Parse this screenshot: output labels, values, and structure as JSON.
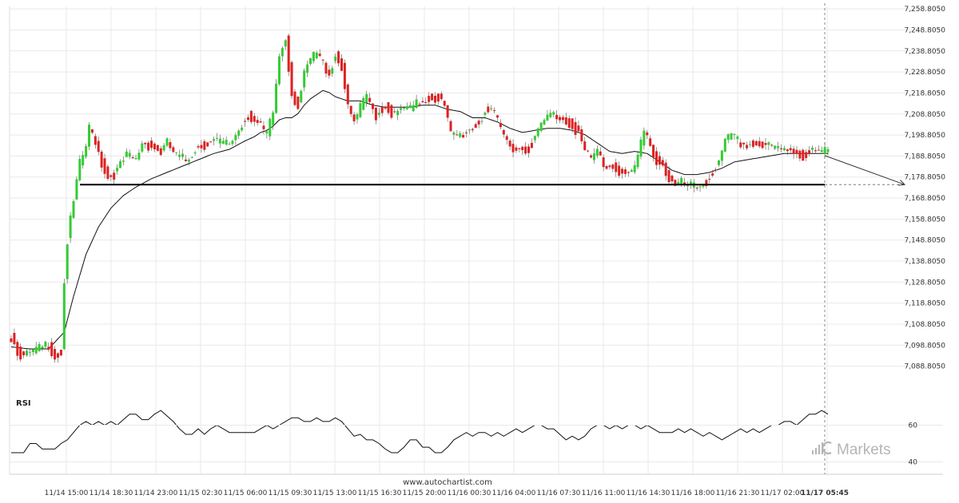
{
  "chart_data": {
    "type": "candlestick",
    "ylim": [
      7086,
      7260
    ],
    "yticks": [
      "7,258.8050",
      "7,248.8050",
      "7,238.8050",
      "7,228.8050",
      "7,218.8050",
      "7,208.8050",
      "7,198.8050",
      "7,188.8050",
      "7,178.8050",
      "7,168.8050",
      "7,158.8050",
      "7,148.8050",
      "7,138.8050",
      "7,128.8050",
      "7,118.8050",
      "7,108.8050",
      "7,098.8050",
      "7,088.8050"
    ],
    "ytick_values": [
      7258.805,
      7248.805,
      7238.805,
      7228.805,
      7218.805,
      7208.805,
      7198.805,
      7188.805,
      7178.805,
      7168.805,
      7158.805,
      7148.805,
      7138.805,
      7128.805,
      7118.805,
      7108.805,
      7098.805,
      7088.805
    ],
    "xtick_labels": [
      "11/14 15:00",
      "11/14 18:30",
      "11/14 23:00",
      "11/15 02:30",
      "11/15 06:00",
      "11/15 09:30",
      "11/15 13:00",
      "11/15 16:30",
      "11/15 20:00",
      "11/16 00:30",
      "11/16 04:00",
      "11/16 07:30",
      "11/16 11:00",
      "11/16 14:30",
      "11/16 18:00",
      "11/16 21:30",
      "11/17 02:00",
      "11/17 05:45"
    ],
    "close_anchors": [
      [
        0,
        7104
      ],
      [
        2,
        7098
      ],
      [
        4,
        7094
      ],
      [
        6,
        7096
      ],
      [
        9,
        7098
      ],
      [
        12,
        7101
      ],
      [
        14,
        7095
      ],
      [
        16,
        7097
      ],
      [
        17,
        7130
      ],
      [
        18,
        7150
      ],
      [
        20,
        7168
      ],
      [
        22,
        7186
      ],
      [
        24,
        7195
      ],
      [
        25,
        7203
      ],
      [
        27,
        7198
      ],
      [
        29,
        7187
      ],
      [
        31,
        7180
      ],
      [
        34,
        7183
      ],
      [
        37,
        7190
      ],
      [
        40,
        7188
      ],
      [
        42,
        7197
      ],
      [
        45,
        7195
      ],
      [
        48,
        7192
      ],
      [
        50,
        7196
      ],
      [
        53,
        7190
      ],
      [
        56,
        7188
      ],
      [
        59,
        7194
      ],
      [
        62,
        7196
      ],
      [
        65,
        7197
      ],
      [
        68,
        7196
      ],
      [
        70,
        7196
      ],
      [
        73,
        7203
      ],
      [
        76,
        7210
      ],
      [
        79,
        7205
      ],
      [
        82,
        7200
      ],
      [
        84,
        7211
      ],
      [
        86,
        7238
      ],
      [
        88,
        7247
      ],
      [
        89,
        7233
      ],
      [
        90,
        7220
      ],
      [
        92,
        7214
      ],
      [
        94,
        7228
      ],
      [
        96,
        7236
      ],
      [
        98,
        7239
      ],
      [
        100,
        7234
      ],
      [
        102,
        7230
      ],
      [
        104,
        7238
      ],
      [
        106,
        7233
      ],
      [
        108,
        7212
      ],
      [
        110,
        7206
      ],
      [
        112,
        7213
      ],
      [
        114,
        7218
      ],
      [
        117,
        7210
      ],
      [
        120,
        7214
      ],
      [
        123,
        7209
      ],
      [
        126,
        7213
      ],
      [
        128,
        7212
      ],
      [
        131,
        7216
      ],
      [
        134,
        7218
      ],
      [
        137,
        7218
      ],
      [
        139,
        7213
      ],
      [
        141,
        7200
      ],
      [
        144,
        7200
      ],
      [
        147,
        7203
      ],
      [
        150,
        7206
      ],
      [
        152,
        7212
      ],
      [
        155,
        7209
      ],
      [
        157,
        7203
      ],
      [
        159,
        7197
      ],
      [
        162,
        7194
      ],
      [
        165,
        7193
      ],
      [
        168,
        7198
      ],
      [
        170,
        7205
      ],
      [
        173,
        7210
      ],
      [
        176,
        7209
      ],
      [
        178,
        7207
      ],
      [
        180,
        7205
      ],
      [
        182,
        7201
      ],
      [
        184,
        7192
      ],
      [
        186,
        7188
      ],
      [
        188,
        7193
      ],
      [
        190,
        7186
      ],
      [
        193,
        7185
      ],
      [
        196,
        7182
      ],
      [
        199,
        7181
      ],
      [
        201,
        7190
      ],
      [
        203,
        7201
      ],
      [
        205,
        7196
      ],
      [
        207,
        7188
      ],
      [
        209,
        7186
      ],
      [
        211,
        7179
      ],
      [
        213,
        7175
      ],
      [
        215,
        7177
      ],
      [
        217,
        7176
      ],
      [
        219,
        7175
      ],
      [
        221,
        7176
      ],
      [
        223,
        7178
      ],
      [
        225,
        7183
      ],
      [
        227,
        7186
      ],
      [
        229,
        7196
      ],
      [
        231,
        7200
      ],
      [
        233,
        7197
      ],
      [
        235,
        7196
      ],
      [
        238,
        7196
      ],
      [
        241,
        7195
      ],
      [
        244,
        7194
      ],
      [
        247,
        7193
      ],
      [
        250,
        7194
      ],
      [
        252,
        7192
      ],
      [
        254,
        7190
      ],
      [
        256,
        7192
      ]
    ],
    "ma_anchors": [
      [
        0,
        7098
      ],
      [
        6,
        7097
      ],
      [
        12,
        7097
      ],
      [
        17,
        7105
      ],
      [
        20,
        7122
      ],
      [
        24,
        7142
      ],
      [
        28,
        7155
      ],
      [
        32,
        7164
      ],
      [
        36,
        7170
      ],
      [
        40,
        7174
      ],
      [
        45,
        7178
      ],
      [
        50,
        7181
      ],
      [
        55,
        7184
      ],
      [
        60,
        7187
      ],
      [
        65,
        7190
      ],
      [
        70,
        7192
      ],
      [
        75,
        7196
      ],
      [
        78,
        7198
      ],
      [
        80,
        7200
      ],
      [
        82,
        7201
      ],
      [
        84,
        7203
      ],
      [
        86,
        7206
      ],
      [
        88,
        7207
      ],
      [
        90,
        7207
      ],
      [
        92,
        7209
      ],
      [
        94,
        7213
      ],
      [
        96,
        7216
      ],
      [
        98,
        7218
      ],
      [
        100,
        7220
      ],
      [
        102,
        7219
      ],
      [
        104,
        7217
      ],
      [
        108,
        7215
      ],
      [
        112,
        7215
      ],
      [
        116,
        7213
      ],
      [
        120,
        7212
      ],
      [
        124,
        7212
      ],
      [
        128,
        7212
      ],
      [
        132,
        7213
      ],
      [
        136,
        7213
      ],
      [
        140,
        7211
      ],
      [
        144,
        7210
      ],
      [
        148,
        7207
      ],
      [
        152,
        7207
      ],
      [
        156,
        7205
      ],
      [
        160,
        7202
      ],
      [
        164,
        7200
      ],
      [
        168,
        7201
      ],
      [
        172,
        7202
      ],
      [
        176,
        7202
      ],
      [
        180,
        7201
      ],
      [
        184,
        7199
      ],
      [
        188,
        7195
      ],
      [
        192,
        7191
      ],
      [
        196,
        7190
      ],
      [
        200,
        7191
      ],
      [
        204,
        7190
      ],
      [
        208,
        7186
      ],
      [
        212,
        7182
      ],
      [
        216,
        7180
      ],
      [
        220,
        7180
      ],
      [
        224,
        7181
      ],
      [
        228,
        7183
      ],
      [
        232,
        7186
      ],
      [
        236,
        7187
      ],
      [
        240,
        7188
      ],
      [
        244,
        7189
      ],
      [
        248,
        7190
      ],
      [
        252,
        7190
      ],
      [
        256,
        7190
      ]
    ],
    "support_level": 7175.2,
    "support_x_end": 1132,
    "forecast_from": [
      1032,
      7189
    ],
    "forecast_to": [
      1132,
      7175.2
    ],
    "rsi": {
      "title": "RSI",
      "ylim": [
        35,
        75
      ],
      "yticks": [
        "60",
        "40"
      ],
      "ytick_values": [
        60,
        40
      ],
      "anchors": [
        [
          0,
          45
        ],
        [
          4,
          45
        ],
        [
          6,
          50
        ],
        [
          8,
          50
        ],
        [
          10,
          47
        ],
        [
          14,
          47
        ],
        [
          16,
          50
        ],
        [
          18,
          52
        ],
        [
          20,
          56
        ],
        [
          22,
          60
        ],
        [
          24,
          62
        ],
        [
          26,
          60
        ],
        [
          28,
          62
        ],
        [
          30,
          60
        ],
        [
          32,
          62
        ],
        [
          34,
          60
        ],
        [
          36,
          63
        ],
        [
          38,
          66
        ],
        [
          40,
          66
        ],
        [
          42,
          63
        ],
        [
          44,
          63
        ],
        [
          46,
          66
        ],
        [
          48,
          68
        ],
        [
          50,
          65
        ],
        [
          52,
          62
        ],
        [
          54,
          58
        ],
        [
          56,
          55
        ],
        [
          58,
          55
        ],
        [
          60,
          58
        ],
        [
          62,
          55
        ],
        [
          64,
          58
        ],
        [
          66,
          60
        ],
        [
          68,
          58
        ],
        [
          70,
          56
        ],
        [
          72,
          56
        ],
        [
          74,
          56
        ],
        [
          76,
          56
        ],
        [
          78,
          56
        ],
        [
          80,
          58
        ],
        [
          82,
          60
        ],
        [
          84,
          58
        ],
        [
          86,
          60
        ],
        [
          88,
          62
        ],
        [
          90,
          64
        ],
        [
          92,
          64
        ],
        [
          94,
          62
        ],
        [
          96,
          62
        ],
        [
          98,
          64
        ],
        [
          100,
          62
        ],
        [
          102,
          62
        ],
        [
          104,
          64
        ],
        [
          106,
          62
        ],
        [
          108,
          58
        ],
        [
          110,
          54
        ],
        [
          112,
          55
        ],
        [
          114,
          52
        ],
        [
          116,
          52
        ],
        [
          118,
          50
        ],
        [
          120,
          47
        ],
        [
          122,
          45
        ],
        [
          124,
          45
        ],
        [
          126,
          48
        ],
        [
          128,
          52
        ],
        [
          130,
          52
        ],
        [
          132,
          48
        ],
        [
          134,
          48
        ],
        [
          136,
          45
        ],
        [
          138,
          45
        ],
        [
          140,
          48
        ],
        [
          142,
          52
        ],
        [
          144,
          54
        ],
        [
          146,
          56
        ],
        [
          148,
          54
        ],
        [
          150,
          56
        ],
        [
          152,
          56
        ],
        [
          154,
          54
        ],
        [
          156,
          56
        ],
        [
          158,
          54
        ],
        [
          160,
          56
        ],
        [
          162,
          58
        ],
        [
          164,
          56
        ],
        [
          166,
          58
        ],
        [
          168,
          60
        ],
        [
          170,
          60
        ],
        [
          172,
          58
        ],
        [
          174,
          58
        ],
        [
          176,
          55
        ],
        [
          178,
          52
        ],
        [
          180,
          54
        ],
        [
          182,
          52
        ],
        [
          184,
          54
        ],
        [
          186,
          58
        ],
        [
          188,
          60
        ],
        [
          190,
          60
        ],
        [
          192,
          58
        ],
        [
          194,
          60
        ],
        [
          196,
          58
        ],
        [
          198,
          60
        ],
        [
          200,
          60
        ],
        [
          202,
          58
        ],
        [
          204,
          60
        ],
        [
          206,
          58
        ],
        [
          208,
          56
        ],
        [
          210,
          56
        ],
        [
          212,
          56
        ],
        [
          214,
          58
        ],
        [
          216,
          56
        ],
        [
          218,
          58
        ],
        [
          220,
          56
        ],
        [
          222,
          54
        ],
        [
          224,
          56
        ],
        [
          226,
          54
        ],
        [
          228,
          52
        ],
        [
          230,
          54
        ],
        [
          232,
          56
        ],
        [
          234,
          58
        ],
        [
          236,
          56
        ],
        [
          238,
          58
        ],
        [
          240,
          56
        ],
        [
          242,
          58
        ],
        [
          244,
          60
        ],
        [
          246,
          60
        ],
        [
          248,
          62
        ],
        [
          250,
          62
        ],
        [
          252,
          60
        ],
        [
          254,
          63
        ],
        [
          256,
          66
        ],
        [
          258,
          66
        ],
        [
          260,
          68
        ],
        [
          262,
          66
        ]
      ]
    }
  },
  "watermark": "www.autochartist.com",
  "brand": {
    "name": "ICMarkets",
    "text": "Markets",
    "color": "#b5b5b5"
  },
  "colors": {
    "bull": "#33cc33",
    "bear": "#dd2222",
    "line": "#111111",
    "grid": "#e9e9e9"
  }
}
